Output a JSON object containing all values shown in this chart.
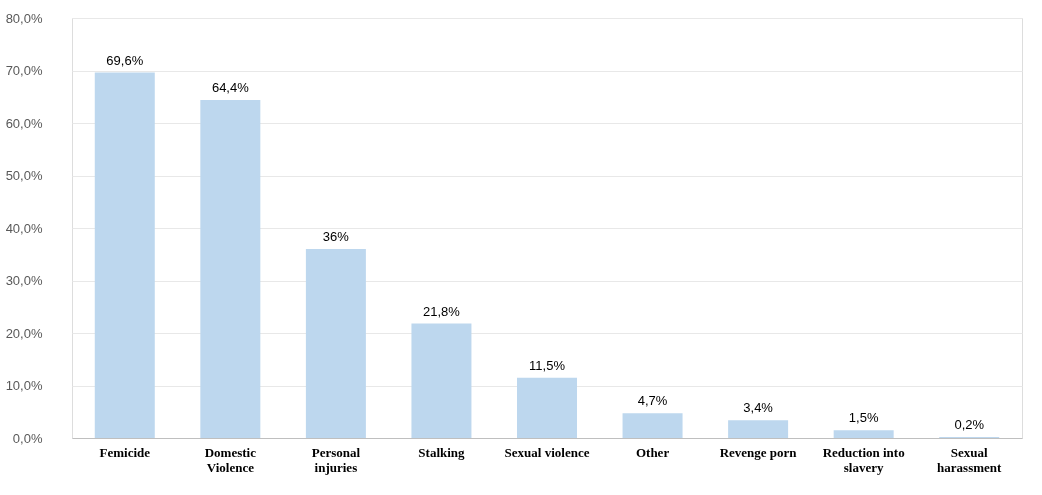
{
  "chart_data": {
    "type": "bar",
    "categories": [
      "Femicide",
      "Domestic Violence",
      "Personal injuries",
      "Stalking",
      "Sexual violence",
      "Other",
      "Revenge porn",
      "Reduction into slavery",
      "Sexual harassment"
    ],
    "values": [
      69.6,
      64.4,
      36,
      21.8,
      11.5,
      4.7,
      3.4,
      1.5,
      0.2
    ],
    "value_labels": [
      "69,6%",
      "64,4%",
      "36%",
      "21,8%",
      "11,5%",
      "4,7%",
      "3,4%",
      "1,5%",
      "0,2%"
    ],
    "color": "#bdd7ee",
    "ylim": [
      0,
      80
    ],
    "yticks": [
      {
        "value": 0,
        "label": "0,0%"
      },
      {
        "value": 10,
        "label": "10,0%"
      },
      {
        "value": 20,
        "label": "20,0%"
      },
      {
        "value": 30,
        "label": "30,0%"
      },
      {
        "value": 40,
        "label": "40,0%"
      },
      {
        "value": 50,
        "label": "50,0%"
      },
      {
        "value": 60,
        "label": "60,0%"
      },
      {
        "value": 70,
        "label": "70,0%"
      },
      {
        "value": 80,
        "label": "80,0%"
      }
    ],
    "grid": "y"
  }
}
